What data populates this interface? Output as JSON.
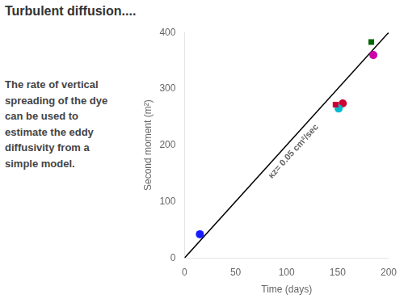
{
  "chart_data": {
    "type": "scatter",
    "title": "Turbulent diffusion....",
    "subtitle": "The rate of vertical\nspreading of the dye\ncan be used to\nestimate the eddy\ndiffusivity from a\nsimple model.",
    "xlabel": "Time (days)",
    "ylabel": "Second moment (m²)",
    "xlim": [
      0,
      200
    ],
    "ylim": [
      0,
      400
    ],
    "xticks": [
      0,
      50,
      100,
      150,
      200
    ],
    "yticks": [
      0,
      100,
      200,
      300,
      400
    ],
    "grid": false,
    "annotations": [
      {
        "text": "κz= 0.05 cm²/sec"
      }
    ],
    "series": [
      {
        "type": "line",
        "color": "#000000",
        "x": [
          0,
          200
        ],
        "values": [
          0,
          400
        ]
      },
      {
        "type": "scatter",
        "color": "#1a1aff",
        "marker": "circle",
        "x": [
          15
        ],
        "values": [
          42
        ]
      },
      {
        "type": "scatter",
        "color": "#cc0033",
        "marker": "square",
        "x": [
          148
        ],
        "values": [
          272
        ]
      },
      {
        "type": "scatter",
        "color": "#00bbcc",
        "marker": "circle",
        "x": [
          151
        ],
        "values": [
          265
        ]
      },
      {
        "type": "scatter",
        "color": "#cc0033",
        "marker": "circle",
        "x": [
          155
        ],
        "values": [
          274
        ]
      },
      {
        "type": "scatter",
        "color": "#cc00aa",
        "marker": "circle",
        "x": [
          185
        ],
        "values": [
          360
        ]
      },
      {
        "type": "scatter",
        "color": "#006600",
        "marker": "square",
        "x": [
          183
        ],
        "values": [
          383
        ]
      }
    ]
  }
}
